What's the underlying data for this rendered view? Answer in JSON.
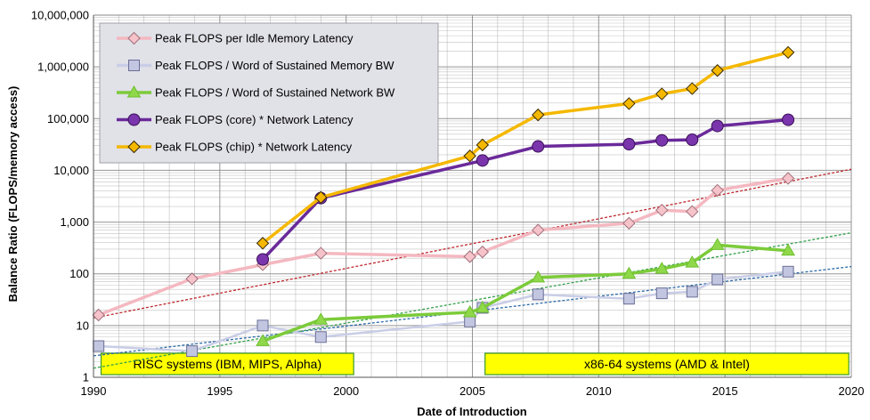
{
  "chart_data": {
    "type": "line",
    "yscale": "log",
    "xlabel": "Date of Introduction",
    "ylabel": "Balance Ratio (FLOPS/memory access)",
    "xlim": [
      1990,
      2020
    ],
    "ylim": [
      1,
      10000000
    ],
    "x_ticks": [
      "1990",
      "1995",
      "2000",
      "2005",
      "2010",
      "2015",
      "2020"
    ],
    "y_ticks": [
      "1",
      "10",
      "100",
      "1,000",
      "10,000",
      "100,000",
      "1,000,000",
      "10,000,000"
    ],
    "grid": true,
    "legend_position": "top-left",
    "series": [
      {
        "name": "Peak FLOPS per Idle Memory Latency",
        "color": "#f4b8c0",
        "marker": "diamond",
        "marker_fill": "#f6c3cb",
        "marker_stroke": "#a0707a",
        "x": [
          1990.2,
          1993.9,
          1996.7,
          1999.0,
          2004.9,
          2005.4,
          2007.6,
          2011.2,
          2012.5,
          2013.7,
          2014.7,
          2017.5
        ],
        "y": [
          16,
          80,
          150,
          250,
          215,
          265,
          700,
          950,
          1700,
          1600,
          4100,
          7000
        ]
      },
      {
        "name": "Peak FLOPS / Word of Sustained Memory BW",
        "color": "#c9cde6",
        "marker": "square",
        "marker_fill": "#c3c6e0",
        "marker_stroke": "#6a6f96",
        "x": [
          1990.2,
          1993.9,
          1996.7,
          1999.0,
          2004.9,
          2005.4,
          2007.6,
          2011.2,
          2012.5,
          2013.7,
          2014.7,
          2017.5
        ],
        "y": [
          4,
          3.2,
          10,
          6,
          12,
          22,
          40,
          33,
          42,
          45,
          78,
          110
        ]
      },
      {
        "name": "Peak FLOPS / Word of Sustained Network BW",
        "color": "#7ccb3a",
        "marker": "triangle",
        "marker_fill": "#8fd84a",
        "marker_stroke": "#6fbf30",
        "x": [
          1996.7,
          1999.0,
          2004.9,
          2005.4,
          2007.6,
          2011.2,
          2012.5,
          2013.7,
          2014.7,
          2017.5
        ],
        "y": [
          5,
          13,
          18,
          22,
          85,
          100,
          125,
          165,
          360,
          280
        ]
      },
      {
        "name": "Peak FLOPS (core) * Network Latency",
        "color": "#6a2a9a",
        "marker": "circle",
        "marker_fill": "#7a35ad",
        "marker_stroke": "#3a1058",
        "x": [
          1996.7,
          1999.0,
          2005.4,
          2007.6,
          2011.2,
          2012.5,
          2013.7,
          2014.7,
          2017.5
        ],
        "y": [
          190,
          2900,
          15500,
          29000,
          32000,
          38000,
          39000,
          72000,
          95000
        ]
      },
      {
        "name": "Peak FLOPS (chip) * Network Latency",
        "color": "#f5b800",
        "marker": "diamond",
        "marker_fill": "#f5b800",
        "marker_stroke": "#3a2a00",
        "x": [
          1996.7,
          1999.0,
          2004.9,
          2005.4,
          2007.6,
          2011.2,
          2012.5,
          2013.7,
          2014.7,
          2017.5
        ],
        "y": [
          390,
          3000,
          19000,
          31000,
          118000,
          195000,
          300000,
          380000,
          850000,
          1900000
        ]
      }
    ],
    "trendlines": [
      {
        "name": "memory-latency-trend",
        "color": "#c0272d",
        "x": [
          1990,
          2020
        ],
        "y": [
          14,
          10500
        ]
      },
      {
        "name": "memory-bw-trend",
        "color": "#2a6aa8",
        "x": [
          1990,
          2020
        ],
        "y": [
          2.6,
          138
        ]
      },
      {
        "name": "network-bw-trend",
        "color": "#33a04a",
        "x": [
          1990,
          2020
        ],
        "y": [
          1.5,
          620
        ]
      }
    ],
    "annotations": [
      {
        "label": "RISC systems (IBM, MIPS, Alpha)",
        "x_start": 1990.3,
        "x_end": 2000.3
      },
      {
        "label": "x86-64 systems (AMD & Intel)",
        "x_start": 2005.5,
        "x_end": 2019.9
      }
    ],
    "colors": {
      "grid": "#8a8a8a",
      "legend_bg": "#e1e1e8",
      "annotation_bg": "#ffff00",
      "annotation_border": "#3a9a2a"
    }
  }
}
